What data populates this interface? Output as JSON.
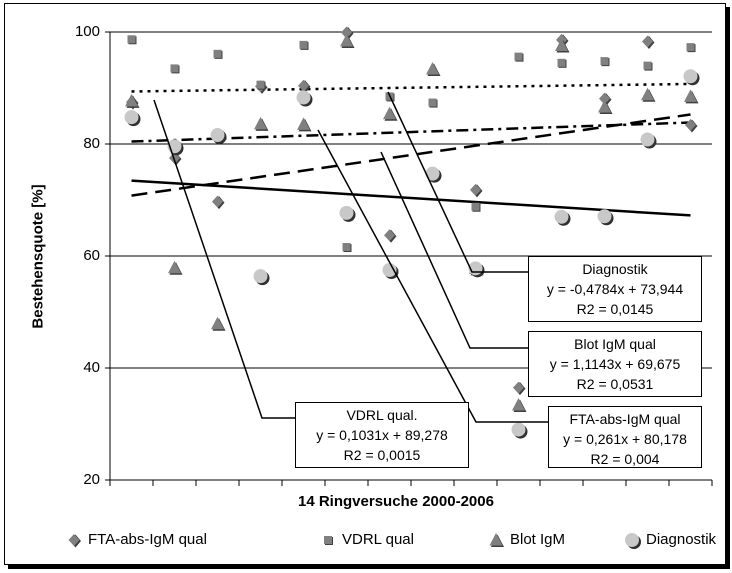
{
  "chart_data": {
    "type": "scatter",
    "title": "",
    "xlabel": "14 Ringversuche 2000-2006",
    "ylabel": "Bestehensquote [%]",
    "ylim": [
      20,
      100
    ],
    "yticks": [
      20,
      40,
      60,
      80,
      100
    ],
    "x": [
      1,
      2,
      3,
      4,
      5,
      6,
      7,
      8,
      9,
      10,
      11,
      12,
      13,
      14
    ],
    "grid": "horizontal",
    "legend_position": "bottom",
    "series": [
      {
        "name": "FTA-abs-IgM qual",
        "marker": "diamond",
        "color": "#808080",
        "values": [
          87.5,
          77.5,
          69.7,
          90.3,
          90.4,
          99.9,
          63.7,
          null,
          71.8,
          36.5,
          98.6,
          88.1,
          98.3,
          83.4
        ]
      },
      {
        "name": "VDRL qual",
        "marker": "square",
        "color": "#808080",
        "values": [
          98.7,
          93.5,
          96.1,
          90.6,
          97.7,
          61.6,
          88.5,
          87.4,
          68.8,
          95.6,
          94.5,
          94.8,
          94.0,
          97.3
        ]
      },
      {
        "name": "Blot IgM",
        "marker": "triangle",
        "color": "#808080",
        "values": [
          87.7,
          57.9,
          47.9,
          83.6,
          83.5,
          98.4,
          85.4,
          93.4,
          57.8,
          33.4,
          97.6,
          86.6,
          88.8,
          88.5
        ]
      },
      {
        "name": "Diagnostik",
        "marker": "circle",
        "color": "#c8c8c8",
        "values": [
          84.8,
          79.6,
          81.6,
          56.4,
          88.3,
          67.7,
          57.5,
          74.7,
          57.8,
          29.0,
          67.0,
          67.1,
          80.8,
          92.1
        ]
      }
    ],
    "trendlines": [
      {
        "series": "Diagnostik",
        "style": "solid",
        "slope": -0.4784,
        "intercept": 73.944,
        "equation": "y = -0,4784x + 73,944",
        "r2": "R2 = 0,0145",
        "label": "Diagnostik"
      },
      {
        "series": "Blot IgM",
        "style": "dashed",
        "slope": 1.1143,
        "intercept": 69.675,
        "equation": "y = 1,1143x + 69,675",
        "r2": "R2 = 0,0531",
        "label": "Blot IgM qual"
      },
      {
        "series": "VDRL qual",
        "style": "dotted",
        "slope": 0.1031,
        "intercept": 89.278,
        "equation": "y = 0,1031x + 89,278",
        "r2": "R2 = 0,0015",
        "label": "VDRL qual."
      },
      {
        "series": "FTA-abs-IgM qual",
        "style": "dashdot",
        "slope": 0.261,
        "intercept": 80.178,
        "equation": "y = 0,261x + 80,178",
        "r2": "R2 = 0,004",
        "label": "FTA-abs-IgM qual"
      }
    ]
  }
}
